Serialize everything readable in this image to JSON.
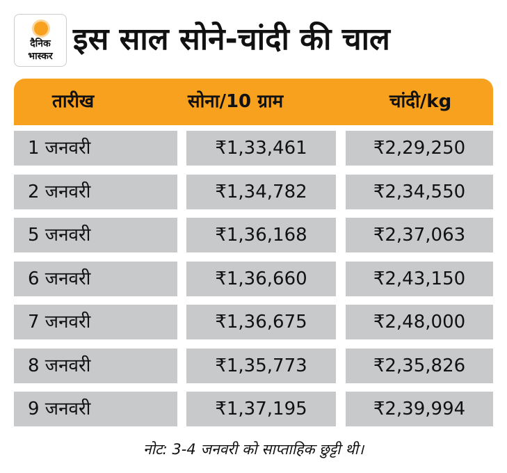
{
  "logo": {
    "line1": "दैनिक",
    "line2": "भास्कर"
  },
  "title": "इस साल सोने-चांदी की चाल",
  "chart_data": {
    "type": "table",
    "title": "इस साल सोने-चांदी की चाल",
    "columns": [
      "तारीख",
      "सोना/10 ग्राम",
      "चांदी/kg"
    ],
    "rows": [
      [
        "1 जनवरी",
        "₹1,33,461",
        "₹2,29,250"
      ],
      [
        "2 जनवरी",
        "₹1,34,782",
        "₹2,34,550"
      ],
      [
        "5 जनवरी",
        "₹1,36,168",
        "₹2,37,063"
      ],
      [
        "6 जनवरी",
        "₹1,36,660",
        "₹2,43,150"
      ],
      [
        "7 जनवरी",
        "₹1,36,675",
        "₹2,48,000"
      ],
      [
        "8 जनवरी",
        "₹1,35,773",
        "₹2,35,826"
      ],
      [
        "9 जनवरी",
        "₹1,37,195",
        "₹2,39,994"
      ]
    ]
  },
  "note": "नोट: 3-4 जनवरी को साप्ताहिक छुट्टी थी।",
  "colors": {
    "header": "#f7a11e",
    "cell": "#c8c9cb"
  }
}
